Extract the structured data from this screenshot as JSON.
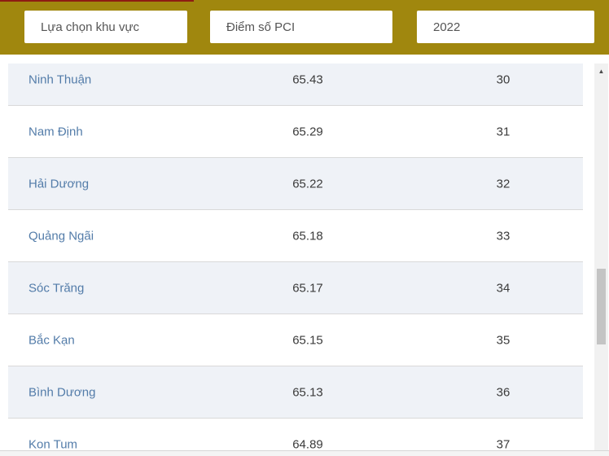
{
  "filters": {
    "region_label": "Lựa chọn khu vực",
    "metric_label": "Điểm số PCI",
    "year_value": "2022"
  },
  "table": {
    "rows": [
      {
        "province": "Ninh Thuận",
        "score": "65.43",
        "rank": "30"
      },
      {
        "province": "Nam Định",
        "score": "65.29",
        "rank": "31"
      },
      {
        "province": "Hải Dương",
        "score": "65.22",
        "rank": "32"
      },
      {
        "province": "Quảng Ngãi",
        "score": "65.18",
        "rank": "33"
      },
      {
        "province": "Sóc Trăng",
        "score": "65.17",
        "rank": "34"
      },
      {
        "province": "Bắc Kạn",
        "score": "65.15",
        "rank": "35"
      },
      {
        "province": "Bình Dương",
        "score": "65.13",
        "rank": "36"
      },
      {
        "province": "Kon Tum",
        "score": "64.89",
        "rank": "37"
      }
    ]
  },
  "icons": {
    "scroll_up_arrow": "▲"
  },
  "colors": {
    "header_gold": "#a0870e",
    "accent_red": "#8e1c12",
    "link_blue": "#537ca9",
    "row_shaded": "#eff2f7",
    "row_border": "#d9d9d9",
    "scroll_track": "#f1f1f1",
    "scroll_thumb": "#c4c4c4"
  }
}
